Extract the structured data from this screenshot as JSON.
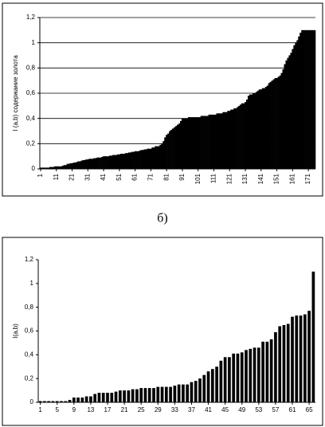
{
  "caption": "б)",
  "chart_data": [
    {
      "type": "bar",
      "ylabel": "I (a,b) содержание золота",
      "color": "#000000",
      "grid": true,
      "ylim": [
        0,
        1.2
      ],
      "yticks": [
        0,
        {
          "value": 0.2,
          "label": "0,2"
        },
        {
          "value": 0.4,
          "label": "0,4"
        },
        {
          "value": 0.6,
          "label": "0,6"
        },
        {
          "value": 0.8,
          "label": "0,8"
        },
        1,
        {
          "value": 1.2,
          "label": "1,2"
        }
      ],
      "categories": [
        "1",
        null,
        null,
        null,
        null,
        null,
        null,
        null,
        null,
        null,
        "11",
        null,
        null,
        null,
        null,
        null,
        null,
        null,
        null,
        null,
        "21",
        null,
        null,
        null,
        null,
        null,
        null,
        null,
        null,
        null,
        "31",
        null,
        null,
        null,
        null,
        null,
        null,
        null,
        null,
        null,
        "41",
        null,
        null,
        null,
        null,
        null,
        null,
        null,
        null,
        null,
        "51",
        null,
        null,
        null,
        null,
        null,
        null,
        null,
        null,
        null,
        "61",
        null,
        null,
        null,
        null,
        null,
        null,
        null,
        null,
        null,
        "71",
        null,
        null,
        null,
        null,
        null,
        null,
        null,
        null,
        null,
        "81",
        null,
        null,
        null,
        null,
        null,
        null,
        null,
        null,
        null,
        "91",
        null,
        null,
        null,
        null,
        null,
        null,
        null,
        null,
        null,
        "101",
        null,
        null,
        null,
        null,
        null,
        null,
        null,
        null,
        null,
        "111",
        null,
        null,
        null,
        null,
        null,
        null,
        null,
        null,
        null,
        "121",
        null,
        null,
        null,
        null,
        null,
        null,
        null,
        null,
        null,
        "131",
        null,
        null,
        null,
        null,
        null,
        null,
        null,
        null,
        null,
        "141",
        null,
        null,
        null,
        null,
        null,
        null,
        null,
        null,
        null,
        "151",
        null,
        null,
        null,
        null,
        null,
        null,
        null,
        null,
        null,
        "161",
        null,
        null,
        null,
        null,
        null,
        null,
        null,
        null,
        null,
        "171",
        null,
        null,
        null,
        null
      ],
      "values": [
        0.01,
        0.01,
        0.01,
        0.01,
        0.01,
        0.01,
        0.015,
        0.015,
        0.015,
        0.02,
        0.02,
        0.02,
        0.02,
        0.02,
        0.025,
        0.03,
        0.03,
        0.04,
        0.04,
        0.045,
        0.045,
        0.05,
        0.05,
        0.055,
        0.06,
        0.06,
        0.065,
        0.07,
        0.07,
        0.075,
        0.075,
        0.08,
        0.08,
        0.08,
        0.085,
        0.085,
        0.09,
        0.09,
        0.09,
        0.095,
        0.1,
        0.1,
        0.1,
        0.1,
        0.105,
        0.105,
        0.11,
        0.11,
        0.11,
        0.115,
        0.115,
        0.12,
        0.12,
        0.12,
        0.125,
        0.125,
        0.13,
        0.13,
        0.135,
        0.135,
        0.14,
        0.14,
        0.14,
        0.145,
        0.15,
        0.15,
        0.155,
        0.155,
        0.16,
        0.16,
        0.16,
        0.17,
        0.17,
        0.18,
        0.18,
        0.18,
        0.19,
        0.2,
        0.22,
        0.25,
        0.27,
        0.28,
        0.3,
        0.31,
        0.32,
        0.33,
        0.34,
        0.35,
        0.36,
        0.38,
        0.4,
        0.4,
        0.4,
        0.4,
        0.41,
        0.41,
        0.41,
        0.41,
        0.41,
        0.41,
        0.41,
        0.41,
        0.42,
        0.42,
        0.42,
        0.42,
        0.42,
        0.43,
        0.43,
        0.43,
        0.43,
        0.43,
        0.44,
        0.44,
        0.44,
        0.44,
        0.45,
        0.45,
        0.45,
        0.46,
        0.46,
        0.47,
        0.47,
        0.48,
        0.48,
        0.49,
        0.5,
        0.51,
        0.52,
        0.52,
        0.53,
        0.55,
        0.58,
        0.59,
        0.59,
        0.6,
        0.6,
        0.61,
        0.62,
        0.63,
        0.63,
        0.64,
        0.64,
        0.65,
        0.66,
        0.68,
        0.69,
        0.7,
        0.71,
        0.72,
        0.72,
        0.73,
        0.74,
        0.76,
        0.79,
        0.83,
        0.86,
        0.88,
        0.9,
        0.92,
        0.95,
        0.98,
        1.0,
        1.02,
        1.05,
        1.08,
        1.1,
        1.1,
        1.1,
        1.1,
        1.1,
        1.1,
        1.1,
        1.1,
        1.1
      ]
    },
    {
      "type": "bar",
      "ylabel": "I(a,b)",
      "color": "#000000",
      "grid": false,
      "ylim": [
        0,
        1.2
      ],
      "yticks": [
        0,
        {
          "value": 0.2,
          "label": "0,2"
        },
        {
          "value": 0.4,
          "label": "0,4"
        },
        {
          "value": 0.6,
          "label": "0,6"
        },
        {
          "value": 0.8,
          "label": "0,8"
        },
        1,
        {
          "value": 1.2,
          "label": "1,2"
        }
      ],
      "categories": [
        "1",
        null,
        null,
        null,
        "5",
        null,
        null,
        null,
        "9",
        null,
        null,
        null,
        "13",
        null,
        null,
        null,
        "17",
        null,
        null,
        null,
        "21",
        null,
        null,
        null,
        "25",
        null,
        null,
        null,
        "29",
        null,
        null,
        null,
        "33",
        null,
        null,
        null,
        "37",
        null,
        null,
        null,
        "41",
        null,
        null,
        null,
        "45",
        null,
        null,
        null,
        "49",
        null,
        null,
        null,
        "53",
        null,
        null,
        null,
        "57",
        null,
        null,
        null,
        "61",
        null,
        null,
        null,
        "65",
        null
      ],
      "values": [
        0.01,
        0.01,
        0.01,
        0.01,
        0.01,
        0.01,
        0.01,
        0.02,
        0.04,
        0.04,
        0.04,
        0.05,
        0.05,
        0.07,
        0.08,
        0.08,
        0.08,
        0.08,
        0.09,
        0.1,
        0.1,
        0.1,
        0.11,
        0.11,
        0.12,
        0.12,
        0.12,
        0.12,
        0.13,
        0.13,
        0.13,
        0.13,
        0.14,
        0.15,
        0.15,
        0.15,
        0.17,
        0.18,
        0.2,
        0.23,
        0.26,
        0.28,
        0.3,
        0.35,
        0.38,
        0.38,
        0.41,
        0.41,
        0.42,
        0.44,
        0.45,
        0.46,
        0.46,
        0.51,
        0.51,
        0.53,
        0.59,
        0.64,
        0.65,
        0.66,
        0.72,
        0.73,
        0.73,
        0.74,
        0.77,
        1.1
      ]
    }
  ]
}
